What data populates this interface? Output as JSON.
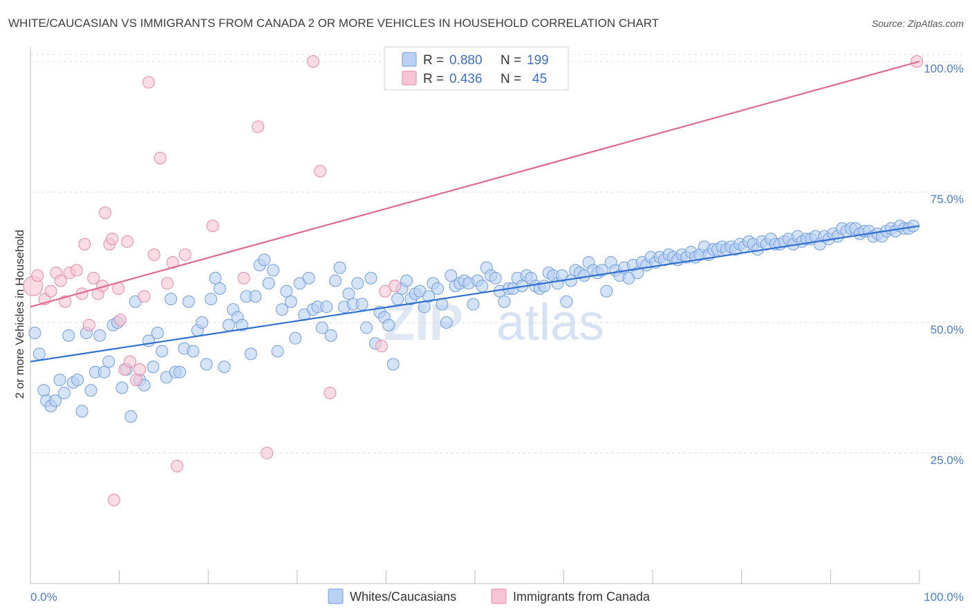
{
  "chart_data": {
    "type": "scatter",
    "title": "WHITE/CAUCASIAN VS IMMIGRANTS FROM CANADA 2 OR MORE VEHICLES IN HOUSEHOLD CORRELATION CHART",
    "source": "Source: ZipAtlas.com",
    "ylabel": "2 or more Vehicles in Household",
    "xlim": [
      0,
      100
    ],
    "ylim": [
      0,
      102
    ],
    "x_tick_labels": [
      "0.0%",
      "100.0%"
    ],
    "y_ticks": [
      {
        "value": 25,
        "label": "25.0%"
      },
      {
        "value": 50,
        "label": "50.0%"
      },
      {
        "value": 75,
        "label": "75.0%"
      },
      {
        "value": 100,
        "label": "100.0%"
      }
    ],
    "grid": "horizontal dashed",
    "watermark": {
      "zip": "ZIP",
      "atlas": "atlas"
    },
    "legend": {
      "position": "top-center",
      "entries": [
        {
          "r_label": "R =",
          "r_value": "0.880",
          "n_label": "N =",
          "n_value": "199"
        },
        {
          "r_label": "R =",
          "r_value": "0.436",
          "n_label": "N =",
          "n_value": "45"
        }
      ]
    },
    "series": [
      {
        "name": "Whites/Caucasians",
        "color": "#6f9de0",
        "fill": "#b9d1f3",
        "trend": {
          "x": [
            0,
            100
          ],
          "y": [
            42.5,
            68.5
          ]
        },
        "points": [
          [
            0.5,
            48
          ],
          [
            1,
            44
          ],
          [
            1.5,
            37
          ],
          [
            1.8,
            35
          ],
          [
            2.3,
            34
          ],
          [
            2.8,
            35
          ],
          [
            3.3,
            39
          ],
          [
            3.8,
            36.5
          ],
          [
            4.3,
            47.5
          ],
          [
            4.8,
            38.5
          ],
          [
            5.3,
            39
          ],
          [
            5.8,
            33
          ],
          [
            6.3,
            48
          ],
          [
            6.8,
            37
          ],
          [
            7.3,
            40.5
          ],
          [
            7.8,
            47.5
          ],
          [
            8.3,
            40.5
          ],
          [
            8.8,
            42.5
          ],
          [
            9.3,
            49.5
          ],
          [
            9.8,
            50
          ],
          [
            10.3,
            37.5
          ],
          [
            10.8,
            41
          ],
          [
            11.3,
            32
          ],
          [
            11.8,
            54
          ],
          [
            12.3,
            39
          ],
          [
            12.8,
            38
          ],
          [
            13.3,
            46.5
          ],
          [
            13.8,
            41.5
          ],
          [
            14.3,
            48
          ],
          [
            14.8,
            44.5
          ],
          [
            15.3,
            39.5
          ],
          [
            15.8,
            54.5
          ],
          [
            16.3,
            40.5
          ],
          [
            16.8,
            40.5
          ],
          [
            17.3,
            45
          ],
          [
            17.8,
            54
          ],
          [
            18.3,
            44.5
          ],
          [
            18.8,
            48.5
          ],
          [
            19.3,
            50
          ],
          [
            19.8,
            42
          ],
          [
            20.3,
            54.5
          ],
          [
            20.8,
            58.5
          ],
          [
            21.3,
            56.5
          ],
          [
            21.8,
            41.5
          ],
          [
            22.3,
            49.5
          ],
          [
            22.8,
            52.5
          ],
          [
            23.3,
            51
          ],
          [
            23.8,
            49.5
          ],
          [
            24.3,
            55
          ],
          [
            24.8,
            44
          ],
          [
            25.3,
            55
          ],
          [
            25.8,
            61
          ],
          [
            26.3,
            62
          ],
          [
            26.8,
            57.5
          ],
          [
            27.3,
            60
          ],
          [
            27.8,
            44.5
          ],
          [
            28.3,
            52.5
          ],
          [
            28.8,
            56
          ],
          [
            29.3,
            54
          ],
          [
            29.8,
            47
          ],
          [
            30.3,
            57.5
          ],
          [
            30.8,
            51.5
          ],
          [
            31.3,
            58.5
          ],
          [
            31.8,
            52.5
          ],
          [
            32.3,
            53
          ],
          [
            32.8,
            49
          ],
          [
            33.3,
            53
          ],
          [
            33.8,
            47.5
          ],
          [
            34.3,
            58
          ],
          [
            34.8,
            60.5
          ],
          [
            35.3,
            53
          ],
          [
            35.8,
            55.5
          ],
          [
            36.3,
            53.5
          ],
          [
            36.8,
            57.5
          ],
          [
            37.3,
            53.5
          ],
          [
            37.8,
            49
          ],
          [
            38.3,
            58.5
          ],
          [
            38.8,
            46
          ],
          [
            39.3,
            52
          ],
          [
            39.8,
            51
          ],
          [
            40.3,
            49.5
          ],
          [
            40.8,
            42
          ],
          [
            41.3,
            54.5
          ],
          [
            41.8,
            56.5
          ],
          [
            42.3,
            58
          ],
          [
            42.8,
            54.5
          ],
          [
            43.3,
            55.5
          ],
          [
            43.8,
            56
          ],
          [
            44.3,
            53
          ],
          [
            44.8,
            55
          ],
          [
            45.3,
            57.5
          ],
          [
            45.8,
            56.5
          ],
          [
            46.3,
            53.5
          ],
          [
            46.8,
            50
          ],
          [
            47.3,
            59
          ],
          [
            47.8,
            57
          ],
          [
            48.3,
            57.5
          ],
          [
            48.8,
            58
          ],
          [
            49.3,
            57.5
          ],
          [
            49.8,
            53.5
          ],
          [
            50.3,
            58
          ],
          [
            50.8,
            57
          ],
          [
            51.3,
            60.5
          ],
          [
            51.8,
            59
          ],
          [
            52.3,
            58.5
          ],
          [
            52.8,
            56
          ],
          [
            53.3,
            54
          ],
          [
            53.8,
            56.5
          ],
          [
            54.3,
            56.5
          ],
          [
            54.8,
            58.5
          ],
          [
            55.3,
            57
          ],
          [
            55.8,
            59
          ],
          [
            56.3,
            58.5
          ],
          [
            56.8,
            57
          ],
          [
            57.3,
            56.5
          ],
          [
            57.8,
            57
          ],
          [
            58.3,
            59.5
          ],
          [
            58.8,
            59
          ],
          [
            59.3,
            57.5
          ],
          [
            59.8,
            59
          ],
          [
            60.3,
            54
          ],
          [
            60.8,
            58
          ],
          [
            61.3,
            60
          ],
          [
            61.8,
            59.5
          ],
          [
            62.3,
            59
          ],
          [
            62.8,
            61.5
          ],
          [
            63.3,
            60
          ],
          [
            63.8,
            59.5
          ],
          [
            64.3,
            60
          ],
          [
            64.8,
            56
          ],
          [
            65.3,
            61.5
          ],
          [
            65.8,
            60
          ],
          [
            66.3,
            59
          ],
          [
            66.8,
            60.5
          ],
          [
            67.3,
            58.5
          ],
          [
            67.8,
            61
          ],
          [
            68.3,
            59.5
          ],
          [
            68.8,
            61.5
          ],
          [
            69.3,
            61
          ],
          [
            69.8,
            62.5
          ],
          [
            70.3,
            61.5
          ],
          [
            70.8,
            62.5
          ],
          [
            71.3,
            62
          ],
          [
            71.8,
            63
          ],
          [
            72.3,
            62.5
          ],
          [
            72.8,
            62
          ],
          [
            73.3,
            63
          ],
          [
            73.8,
            62.5
          ],
          [
            74.3,
            63.5
          ],
          [
            74.8,
            62.5
          ],
          [
            75.3,
            63
          ],
          [
            75.8,
            64.5
          ],
          [
            76.3,
            63
          ],
          [
            76.8,
            64
          ],
          [
            77.3,
            64
          ],
          [
            77.8,
            64.5
          ],
          [
            78.3,
            64
          ],
          [
            78.8,
            64.5
          ],
          [
            79.3,
            64
          ],
          [
            79.8,
            65
          ],
          [
            80.3,
            64.5
          ],
          [
            80.8,
            65.5
          ],
          [
            81.3,
            65
          ],
          [
            81.8,
            64
          ],
          [
            82.3,
            65.5
          ],
          [
            82.8,
            65
          ],
          [
            83.3,
            66
          ],
          [
            83.8,
            65
          ],
          [
            84.3,
            65
          ],
          [
            84.8,
            65.5
          ],
          [
            85.3,
            66
          ],
          [
            85.8,
            65
          ],
          [
            86.3,
            66.5
          ],
          [
            86.8,
            65.5
          ],
          [
            87.3,
            66
          ],
          [
            87.8,
            66
          ],
          [
            88.3,
            66.5
          ],
          [
            88.8,
            65
          ],
          [
            89.3,
            66.5
          ],
          [
            89.8,
            66
          ],
          [
            90.3,
            67
          ],
          [
            90.8,
            66.5
          ],
          [
            91.3,
            68
          ],
          [
            91.8,
            67.5
          ],
          [
            92.3,
            68
          ],
          [
            92.8,
            68
          ],
          [
            93.3,
            67
          ],
          [
            93.8,
            67.5
          ],
          [
            94.3,
            67.5
          ],
          [
            94.8,
            66.5
          ],
          [
            95.3,
            67
          ],
          [
            95.8,
            66.5
          ],
          [
            96.3,
            67.5
          ],
          [
            96.8,
            68
          ],
          [
            97.3,
            67.5
          ],
          [
            97.8,
            68.5
          ],
          [
            98.3,
            68
          ],
          [
            98.8,
            68
          ],
          [
            99.3,
            68.5
          ]
        ]
      },
      {
        "name": "Immigrants from Canada",
        "color": "#e889a7",
        "fill": "#f6c4d4",
        "trend": {
          "x": [
            0,
            100
          ],
          "y": [
            53,
            100
          ]
        },
        "points": [
          [
            0.3,
            57
          ],
          [
            0.8,
            59
          ],
          [
            1.6,
            54.5
          ],
          [
            2.3,
            56
          ],
          [
            2.9,
            59.5
          ],
          [
            3.4,
            58
          ],
          [
            3.9,
            54
          ],
          [
            4.4,
            59.5
          ],
          [
            5.2,
            60
          ],
          [
            5.8,
            55.5
          ],
          [
            6.1,
            65
          ],
          [
            6.6,
            49.5
          ],
          [
            7.1,
            58.5
          ],
          [
            7.6,
            55.5
          ],
          [
            8.1,
            57
          ],
          [
            8.4,
            71
          ],
          [
            8.9,
            65
          ],
          [
            9.2,
            66
          ],
          [
            9.9,
            56.5
          ],
          [
            10.1,
            50.5
          ],
          [
            10.6,
            41
          ],
          [
            10.9,
            65.5
          ],
          [
            11.2,
            42.5
          ],
          [
            11.9,
            39
          ],
          [
            12.3,
            41
          ],
          [
            12.8,
            55
          ],
          [
            13.3,
            96
          ],
          [
            13.9,
            63
          ],
          [
            14.6,
            81.5
          ],
          [
            15.4,
            57.5
          ],
          [
            16.0,
            61.5
          ],
          [
            16.5,
            22.5
          ],
          [
            17.4,
            63
          ],
          [
            20.5,
            68.5
          ],
          [
            24.0,
            58.5
          ],
          [
            25.6,
            87.5
          ],
          [
            26.6,
            25
          ],
          [
            31.8,
            100
          ],
          [
            32.6,
            79
          ],
          [
            33.7,
            36.5
          ],
          [
            39.5,
            45.5
          ],
          [
            39.9,
            56
          ],
          [
            41.0,
            57
          ],
          [
            9.4,
            16
          ],
          [
            99.7,
            100
          ]
        ]
      }
    ]
  }
}
